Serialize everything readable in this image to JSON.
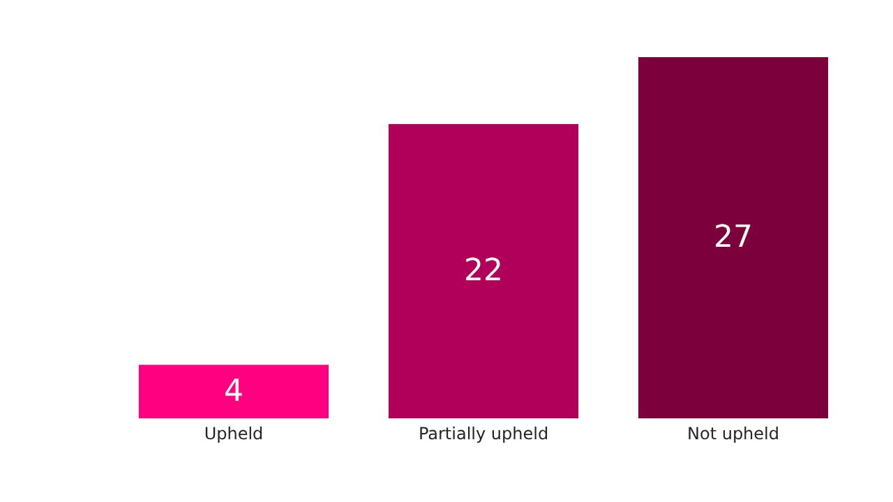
{
  "chart_data": {
    "type": "bar",
    "categories": [
      "Upheld",
      "Partially upheld",
      "Not upheld"
    ],
    "values": [
      4,
      22,
      27
    ],
    "colors": [
      "#ff0080",
      "#b0005a",
      "#7b003c"
    ],
    "data_labels": true
  }
}
